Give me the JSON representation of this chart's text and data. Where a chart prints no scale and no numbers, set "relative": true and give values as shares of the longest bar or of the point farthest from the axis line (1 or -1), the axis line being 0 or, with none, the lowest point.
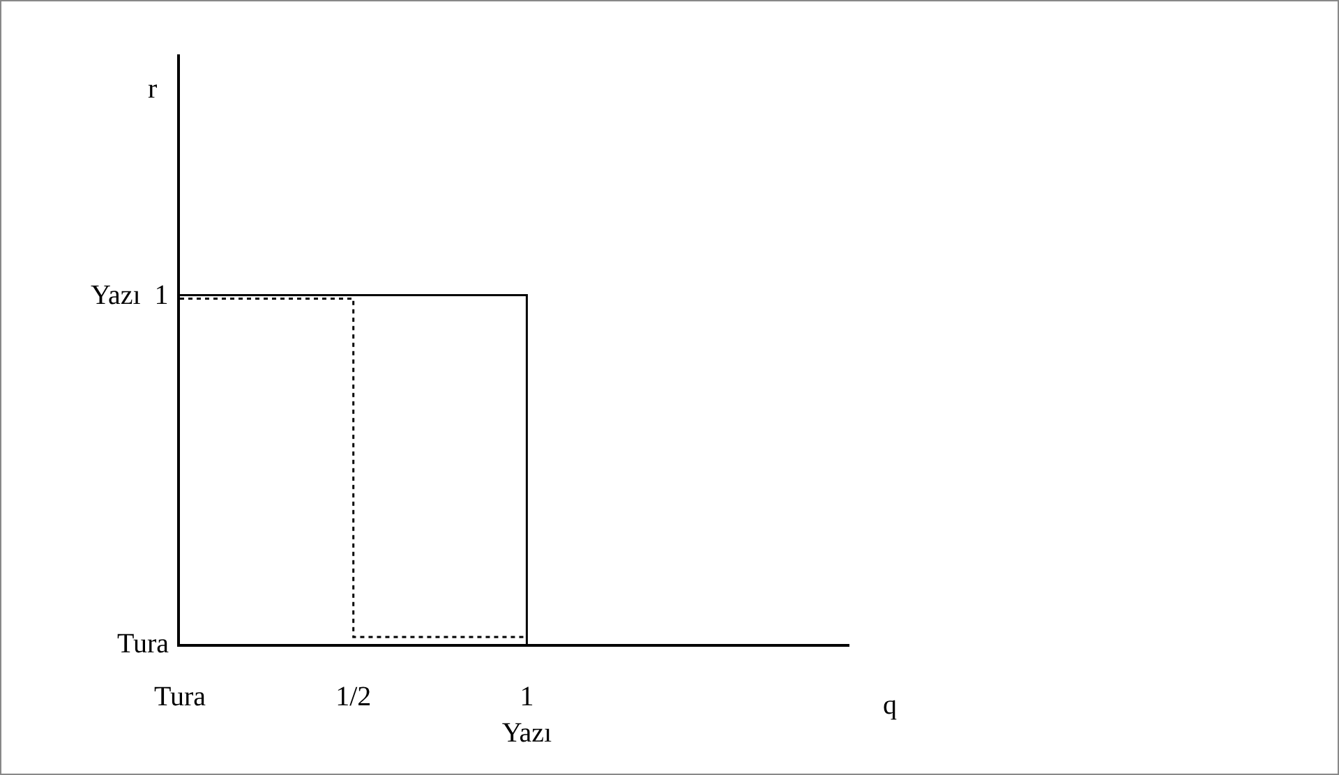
{
  "chart_data": {
    "type": "line",
    "relative": true,
    "series": [
      {
        "color": "#000000",
        "line_style": "solid",
        "x": [
          0,
          1,
          1
        ],
        "values": [
          1,
          1,
          0
        ]
      },
      {
        "color": "#000000",
        "line_style": "dotted",
        "x": [
          0,
          0.5,
          0.5,
          1
        ],
        "values": [
          0.99,
          0.99,
          0.02,
          0.02
        ]
      }
    ],
    "xlim": [
      0,
      1.93
    ],
    "xticks": [
      {
        "value": 0,
        "label": "Tura"
      },
      {
        "value": 0.5,
        "label": "1/2"
      },
      {
        "value": 1,
        "label": "1\nYazı"
      }
    ],
    "annotations": [
      "Tura",
      "Yazı  1",
      "r",
      "q"
    ],
    "marker": "none"
  }
}
